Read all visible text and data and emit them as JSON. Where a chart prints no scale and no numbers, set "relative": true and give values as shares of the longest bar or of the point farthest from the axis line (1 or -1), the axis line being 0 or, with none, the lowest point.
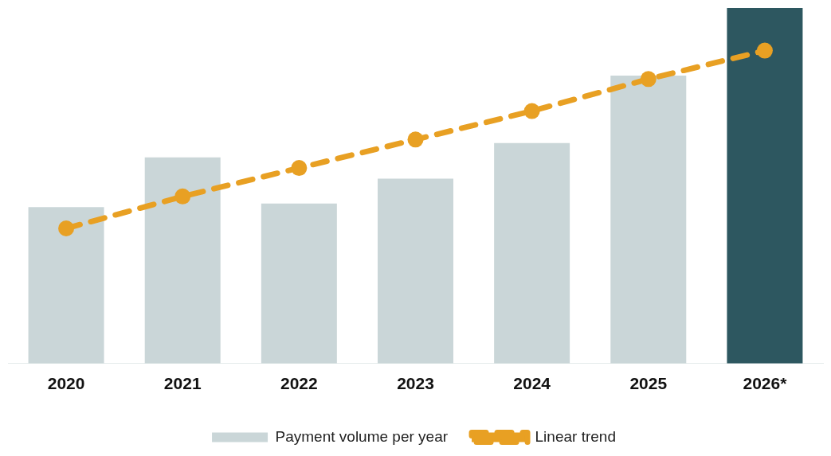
{
  "chart_data": {
    "type": "bar",
    "relative": true,
    "categories": [
      "2020",
      "2021",
      "2022",
      "2023",
      "2024",
      "2025",
      "2026*"
    ],
    "series": [
      {
        "name": "Payment volume per year",
        "color": "#cad6d8",
        "colors": [
          "#cad6d8",
          "#cad6d8",
          "#cad6d8",
          "#cad6d8",
          "#cad6d8",
          "#cad6d8",
          "#2d5760"
        ],
        "values": [
          0.44,
          0.58,
          0.45,
          0.52,
          0.62,
          0.81,
          1
        ]
      },
      {
        "name": "Linear trend",
        "type": "line",
        "color": "#e8a023",
        "marker": "circle",
        "line_style": "dashed",
        "values": [
          0.38,
          0.47,
          0.55,
          0.63,
          0.71,
          0.8,
          0.88
        ]
      }
    ],
    "grid": false,
    "legend": "bottom"
  }
}
